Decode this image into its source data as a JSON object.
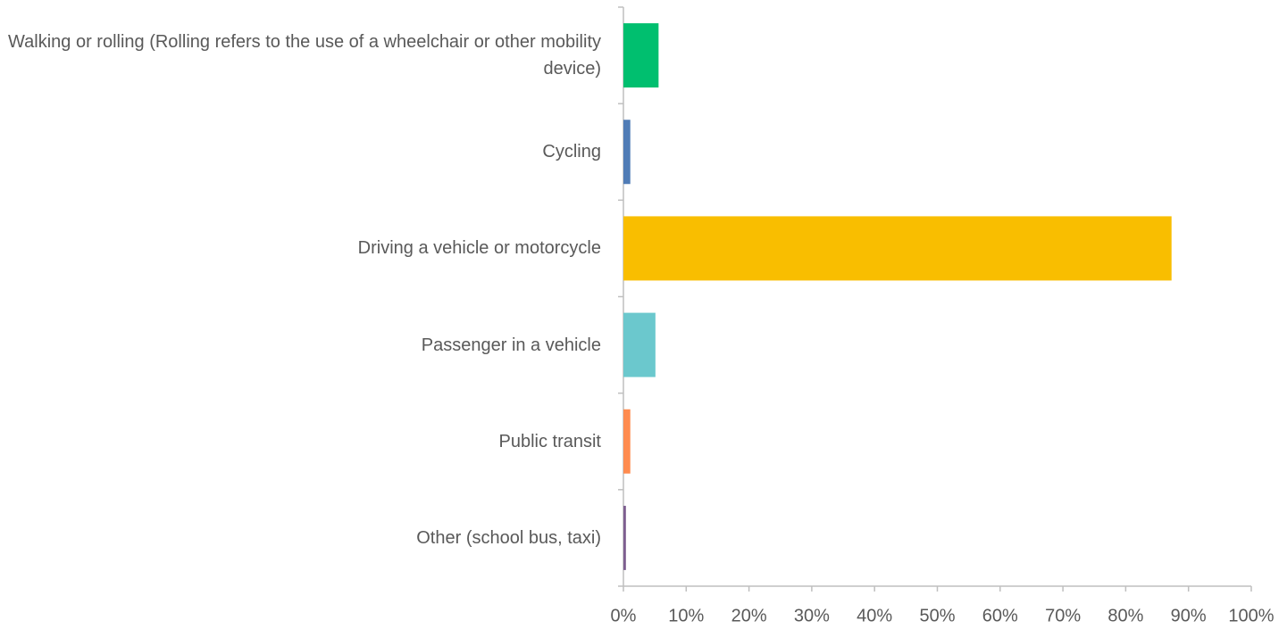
{
  "chart_data": {
    "type": "bar",
    "orientation": "horizontal",
    "categories": [
      "Walking or rolling (Rolling refers to the use of a wheelchair or other mobility device)",
      "Cycling",
      "Driving a vehicle or motorcycle",
      "Passenger in a vehicle",
      "Public transit",
      "Other (school bus, taxi)"
    ],
    "values": [
      5.6,
      1.1,
      87.3,
      5.1,
      1.1,
      0.4
    ],
    "colors": [
      "#00bf6f",
      "#507cb6",
      "#f9be00",
      "#6bc8cd",
      "#ff8b4f",
      "#7d5e90"
    ],
    "xlim": [
      0,
      100
    ],
    "xticks": [
      {
        "value": 0,
        "label": "0%"
      },
      {
        "value": 10,
        "label": "10%"
      },
      {
        "value": 20,
        "label": "20%"
      },
      {
        "value": 30,
        "label": "30%"
      },
      {
        "value": 40,
        "label": "40%"
      },
      {
        "value": 50,
        "label": "50%"
      },
      {
        "value": 60,
        "label": "60%"
      },
      {
        "value": 70,
        "label": "70%"
      },
      {
        "value": 80,
        "label": "80%"
      },
      {
        "value": 90,
        "label": "90%"
      },
      {
        "value": 100,
        "label": "100%"
      }
    ],
    "grid": false
  }
}
